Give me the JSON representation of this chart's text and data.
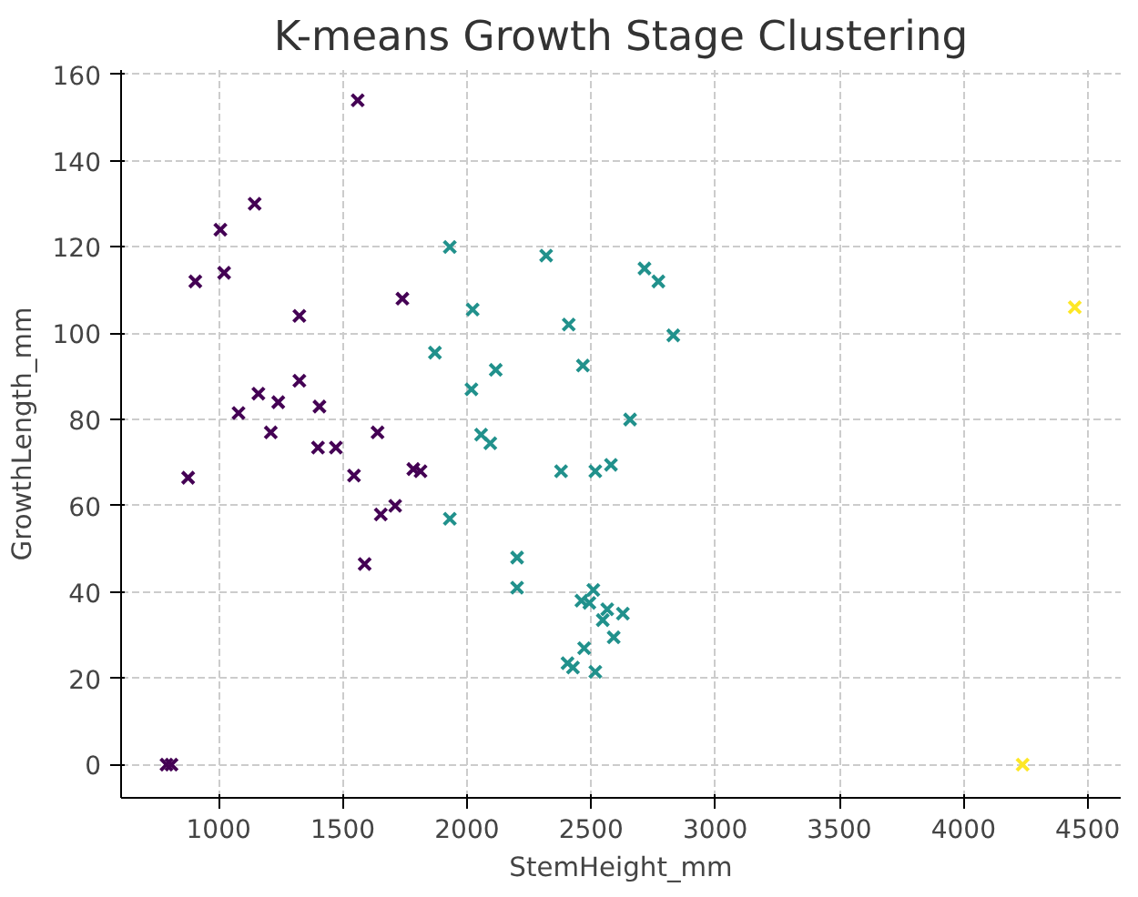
{
  "chart_data": {
    "type": "scatter",
    "title": "K-means Growth Stage Clustering",
    "xlabel": "StemHeight_mm",
    "ylabel": "GrowthLength_mm",
    "xlim": [
      607,
      4633
    ],
    "ylim": [
      -7.7,
      161
    ],
    "xticks": [
      1000,
      1500,
      2000,
      2500,
      3000,
      3500,
      4000,
      4500
    ],
    "yticks": [
      0,
      20,
      40,
      60,
      80,
      100,
      120,
      140,
      160
    ],
    "grid": true,
    "marker": "cross",
    "series": [
      {
        "color": "#440154",
        "x": [
          790,
          810,
          877,
          906,
          1007,
          1022,
          1145,
          1080,
          1160,
          1210,
          1240,
          1325,
          1325,
          1406,
          1400,
          1472,
          1545,
          1560,
          1588,
          1640,
          1653,
          1711,
          1740,
          1784,
          1813
        ],
        "values": [
          0,
          0,
          66.5,
          112,
          124,
          114,
          130,
          81.5,
          86,
          77,
          84,
          104,
          89,
          83,
          73.5,
          73.5,
          67,
          154,
          46.5,
          77,
          58,
          60,
          108,
          68.5,
          68
        ]
      },
      {
        "color": "#21918c",
        "x": [
          1931,
          2319,
          2715,
          2771,
          2023,
          2410,
          2831,
          1871,
          2116,
          2467,
          2018,
          2657,
          2057,
          2094,
          2379,
          2517,
          2580,
          1931,
          2202,
          2202,
          2509,
          2461,
          2493,
          2565,
          2628,
          2547,
          2591,
          2472,
          2405,
          2427,
          2517
        ],
        "values": [
          120,
          118,
          115,
          112,
          105.5,
          102,
          99.5,
          95.5,
          91.5,
          92.5,
          87,
          80,
          76.5,
          74.5,
          68,
          68,
          69.5,
          57,
          48,
          41,
          40.5,
          38,
          37.5,
          36,
          35,
          33.5,
          29.5,
          27,
          23.5,
          22.5,
          21.5
        ]
      },
      {
        "color": "#fde725",
        "x": [
          4448,
          4238
        ],
        "values": [
          106,
          0
        ]
      }
    ]
  }
}
